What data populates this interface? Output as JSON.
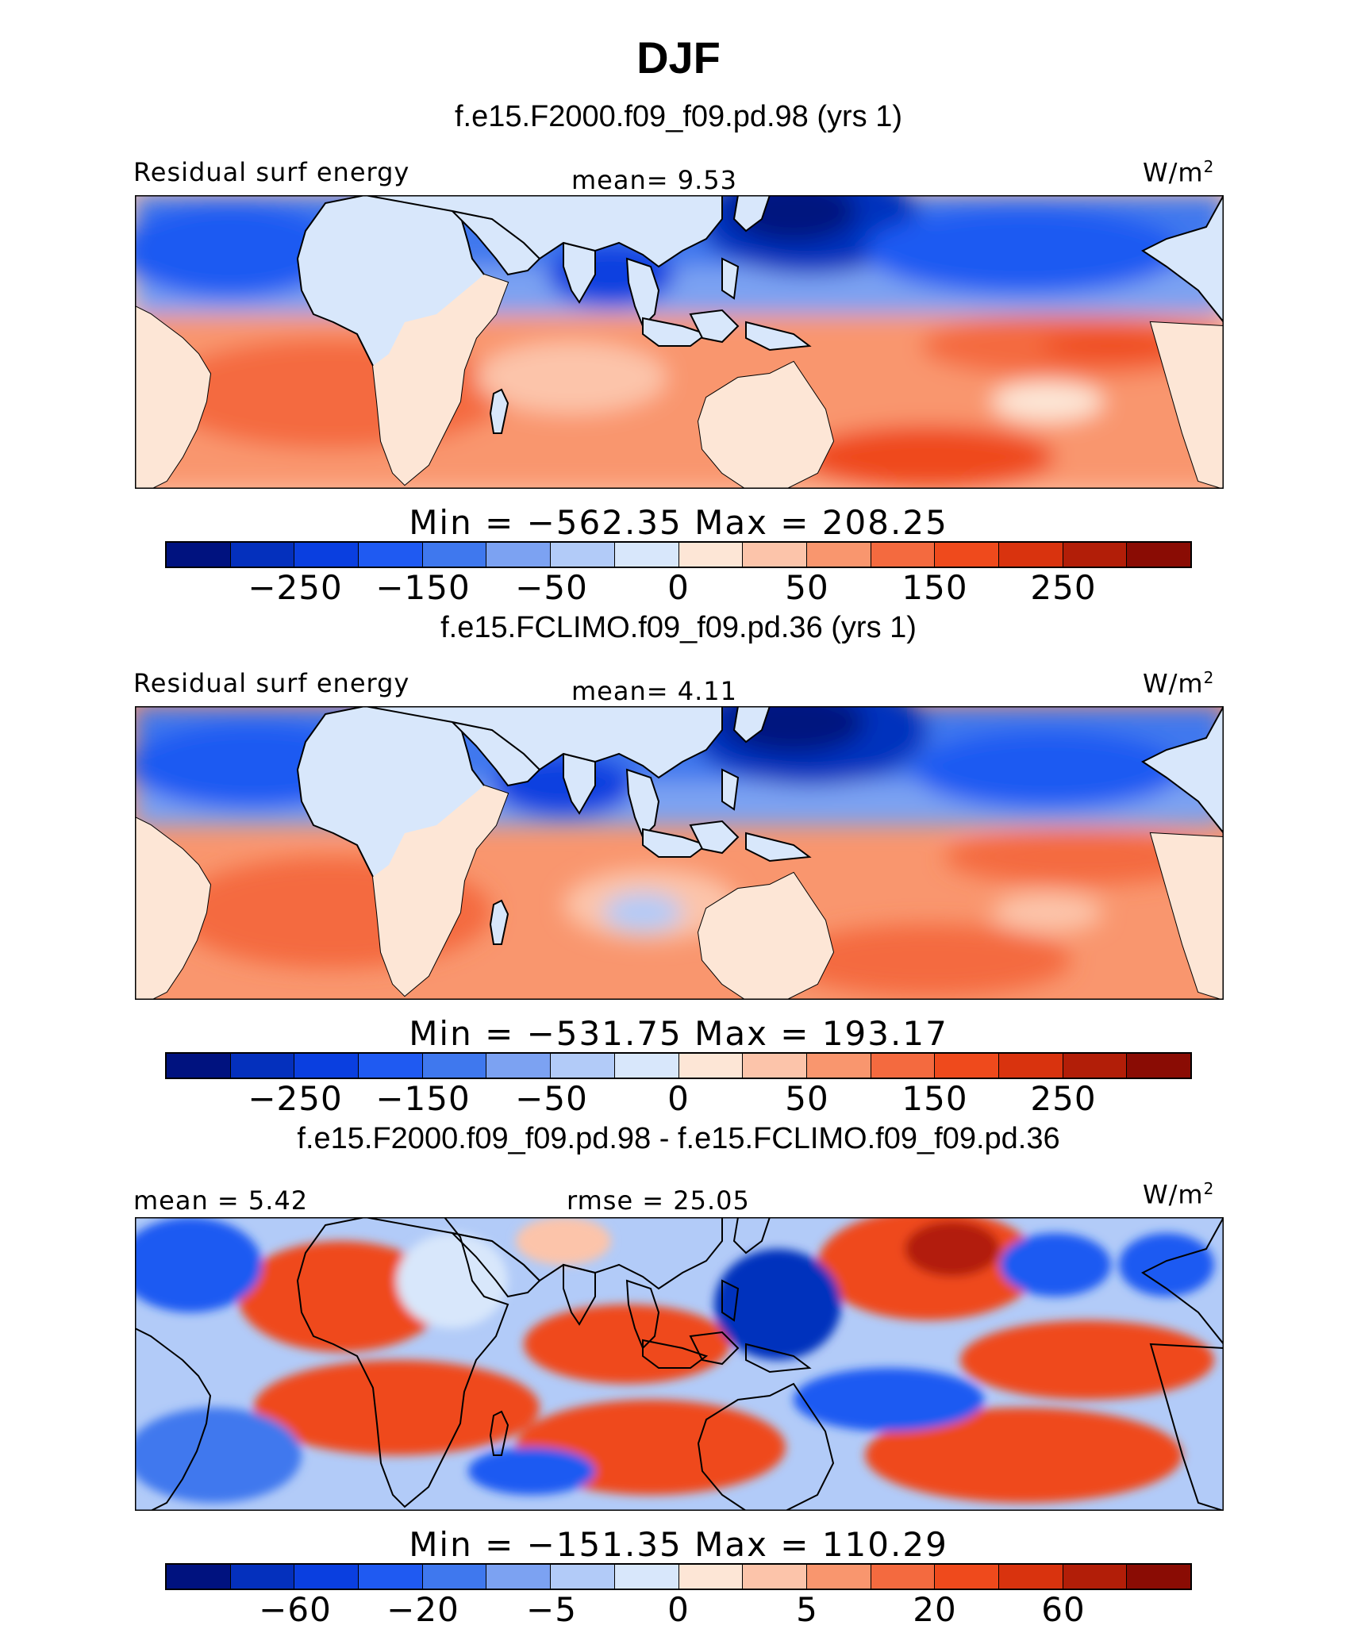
{
  "title": "DJF",
  "panels": [
    {
      "subtitle": "f.e15.F2000.f09_f09.pd.98 (yrs 1)",
      "left_label": "Residual surf energy",
      "center_label": "mean=    9.53",
      "units": "W/m",
      "units_sup": "2",
      "minmax": "Min  =  −562.35  Max  =  208.25",
      "colorbar_ticks": [
        "−250",
        "−150",
        "−50",
        "0",
        "50",
        "150",
        "250"
      ]
    },
    {
      "subtitle": "f.e15.FCLIMO.f09_f09.pd.36 (yrs 1)",
      "left_label": "Residual surf energy",
      "center_label": "mean=    4.11",
      "units": "W/m",
      "units_sup": "2",
      "minmax": "Min  =  −531.75  Max  =  193.17",
      "colorbar_ticks": [
        "−250",
        "−150",
        "−50",
        "0",
        "50",
        "150",
        "250"
      ]
    },
    {
      "subtitle": "f.e15.F2000.f09_f09.pd.98 - f.e15.FCLIMO.f09_f09.pd.36",
      "left_label": "mean  =    5.42",
      "center_label": "rmse  =    25.05",
      "units": "W/m",
      "units_sup": "2",
      "minmax": "Min  =  −151.35  Max  =  110.29",
      "colorbar_ticks": [
        "−60",
        "−20",
        "−5",
        "0",
        "5",
        "20",
        "60"
      ]
    }
  ],
  "colors": {
    "palette": [
      "#00127f",
      "#0430bd",
      "#0a3fe0",
      "#1f5af2",
      "#3f78ee",
      "#7ca2f2",
      "#b2cbf8",
      "#d8e7fb",
      "#fde6d6",
      "#fcc4aa",
      "#f9966e",
      "#f46a3f",
      "#ef4a1c",
      "#d9330e",
      "#b21e08",
      "#8a0c04"
    ]
  },
  "chart_data": [
    {
      "type": "heatmap",
      "title": "f.e15.F2000.f09_f09.pd.98 (yrs 1)",
      "variable": "Residual surf energy",
      "units": "W/m2",
      "mean": 9.53,
      "min": -562.35,
      "max": 208.25,
      "colorbar_tick_values": [
        -250,
        -150,
        -50,
        0,
        50,
        150,
        250
      ]
    },
    {
      "type": "heatmap",
      "title": "f.e15.FCLIMO.f09_f09.pd.36 (yrs 1)",
      "variable": "Residual surf energy",
      "units": "W/m2",
      "mean": 4.11,
      "min": -531.75,
      "max": 193.17,
      "colorbar_tick_values": [
        -250,
        -150,
        -50,
        0,
        50,
        150,
        250
      ]
    },
    {
      "type": "heatmap",
      "title": "f.e15.F2000.f09_f09.pd.98 - f.e15.FCLIMO.f09_f09.pd.36",
      "units": "W/m2",
      "mean": 5.42,
      "rmse": 25.05,
      "min": -151.35,
      "max": 110.29,
      "colorbar_tick_values": [
        -60,
        -20,
        -5,
        0,
        5,
        20,
        60
      ]
    }
  ]
}
